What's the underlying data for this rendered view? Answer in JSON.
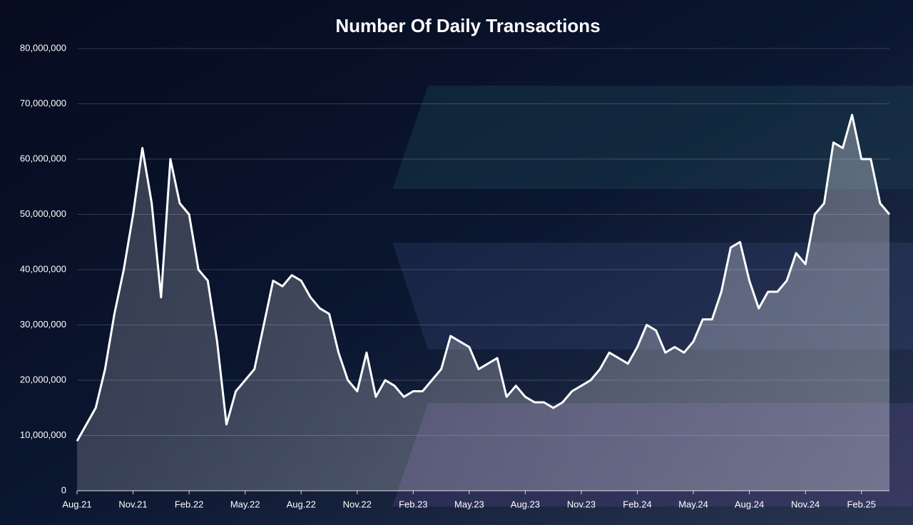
{
  "chart_data": {
    "type": "line",
    "title": "Number Of Daily Transactions",
    "categories": [
      "Aug.21",
      null,
      null,
      null,
      null,
      null,
      "Nov.21",
      null,
      null,
      null,
      null,
      null,
      "Feb.22",
      null,
      null,
      null,
      null,
      null,
      "May.22",
      null,
      null,
      null,
      null,
      null,
      "Aug.22",
      null,
      null,
      null,
      null,
      null,
      "Nov.22",
      null,
      null,
      null,
      null,
      null,
      "Feb.23",
      null,
      null,
      null,
      null,
      null,
      "May.23",
      null,
      null,
      null,
      null,
      null,
      "Aug.23",
      null,
      null,
      null,
      null,
      null,
      "Nov.23",
      null,
      null,
      null,
      null,
      null,
      "Feb.24",
      null,
      null,
      null,
      null,
      null,
      "May.24",
      null,
      null,
      null,
      null,
      null,
      "Aug.24",
      null,
      null,
      null,
      null,
      null,
      "Nov.24",
      null,
      null,
      null,
      null,
      null,
      "Feb.25",
      null,
      null,
      null
    ],
    "values": [
      9000000,
      12000000,
      15000000,
      22000000,
      32000000,
      40000000,
      50000000,
      62000000,
      52000000,
      35000000,
      60000000,
      52000000,
      50000000,
      40000000,
      38000000,
      27000000,
      12000000,
      18000000,
      20000000,
      22000000,
      30000000,
      38000000,
      37000000,
      39000000,
      38000000,
      35000000,
      33000000,
      32000000,
      25000000,
      20000000,
      18000000,
      25000000,
      17000000,
      20000000,
      19000000,
      17000000,
      18000000,
      18000000,
      20000000,
      22000000,
      28000000,
      27000000,
      26000000,
      22000000,
      23000000,
      24000000,
      17000000,
      19000000,
      17000000,
      16000000,
      16000000,
      15000000,
      16000000,
      18000000,
      19000000,
      20000000,
      22000000,
      25000000,
      24000000,
      23000000,
      26000000,
      30000000,
      29000000,
      25000000,
      26000000,
      25000000,
      27000000,
      31000000,
      31000000,
      36000000,
      44000000,
      45000000,
      38000000,
      33000000,
      36000000,
      36000000,
      38000000,
      43000000,
      41000000,
      50000000,
      52000000,
      63000000,
      62000000,
      68000000,
      60000000,
      60000000,
      52000000,
      50000000
    ],
    "color": "#ffffff",
    "ylim": [
      0,
      80000000
    ],
    "yticks": [
      0,
      {
        "value": 10000000,
        "label": "10,000,000"
      },
      {
        "value": 20000000,
        "label": "20,000,000"
      },
      {
        "value": 30000000,
        "label": "30,000,000"
      },
      {
        "value": 40000000,
        "label": "40,000,000"
      },
      {
        "value": 50000000,
        "label": "50,000,000"
      },
      {
        "value": 60000000,
        "label": "60,000,000"
      },
      {
        "value": 70000000,
        "label": "70,000,000"
      },
      {
        "value": 80000000,
        "label": "80,000,000"
      }
    ],
    "grid": true
  }
}
